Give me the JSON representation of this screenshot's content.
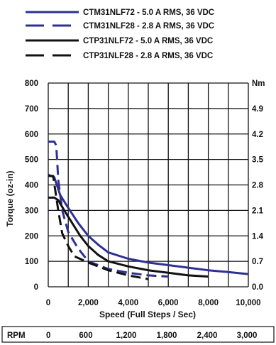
{
  "chart_data": {
    "type": "line",
    "xlabel": "Speed  (Full Steps / Sec)",
    "ylabel": "Torque (oz-in)",
    "y2label": "Nm",
    "xlim": [
      0,
      10000
    ],
    "ylim": [
      0,
      800
    ],
    "grid": true,
    "legend_position": "top",
    "x_ticks": [
      0,
      2000,
      4000,
      6000,
      8000,
      10000
    ],
    "x_tick_labels": [
      "0",
      "2,000",
      "4,000",
      "6,000",
      "8,000",
      "10,000"
    ],
    "y_ticks": [
      0,
      100,
      200,
      300,
      400,
      500,
      600,
      700,
      800
    ],
    "y_tick_labels": [
      "0",
      "100",
      "200",
      "300",
      "400",
      "500",
      "600",
      "700",
      "800"
    ],
    "y2_ticks": [
      0,
      100,
      200,
      300,
      400,
      500,
      600,
      700,
      800
    ],
    "y2_tick_labels": [
      "0.0",
      "0.7",
      "1.4",
      "2.1",
      "2.8",
      "3.5",
      "4.2",
      "4.9",
      "Nm"
    ],
    "rpm_row": {
      "label": "RPM",
      "values": [
        "0",
        "600",
        "1,200",
        "1,800",
        "2,400",
        "3,000"
      ]
    },
    "series": [
      {
        "name": "CTM31NLF72  -  5.0 A RMS,  36 VDC",
        "color": "#2e3192",
        "style": "solid",
        "x": [
          0,
          300,
          600,
          1000,
          1500,
          2000,
          2500,
          3000,
          4000,
          5000,
          6000,
          7000,
          8000,
          9000,
          10000
        ],
        "y": [
          440,
          430,
          360,
          310,
          250,
          200,
          165,
          135,
          110,
          95,
          85,
          75,
          65,
          58,
          50
        ]
      },
      {
        "name": "CTM31NLF28  -  2.8 A RMS,  36 VDC",
        "color": "#2e3192",
        "style": "dashed",
        "x": [
          0,
          300,
          400,
          500,
          700,
          1000,
          1500,
          2000,
          3000,
          4000,
          5000,
          6000
        ],
        "y": [
          570,
          570,
          555,
          420,
          300,
          215,
          150,
          100,
          70,
          55,
          45,
          40
        ]
      },
      {
        "name": "CTP31NLF72  -  5.0 A RMS,  36 VDC",
        "color": "#111111",
        "style": "solid",
        "x": [
          0,
          300,
          500,
          800,
          1200,
          1600,
          2000,
          2500,
          3000,
          4000,
          5000,
          6000,
          7000,
          8000
        ],
        "y": [
          350,
          350,
          340,
          300,
          250,
          200,
          160,
          125,
          100,
          80,
          65,
          55,
          45,
          40
        ]
      },
      {
        "name": "CTP31NLF28  -  2.8 A RMS,  36 VDC",
        "color": "#111111",
        "style": "dashed",
        "x": [
          0,
          250,
          300,
          500,
          700,
          1000,
          1300,
          2000,
          3000,
          4000,
          5000
        ],
        "y": [
          435,
          435,
          405,
          300,
          210,
          160,
          120,
          95,
          65,
          45,
          30
        ]
      }
    ]
  }
}
